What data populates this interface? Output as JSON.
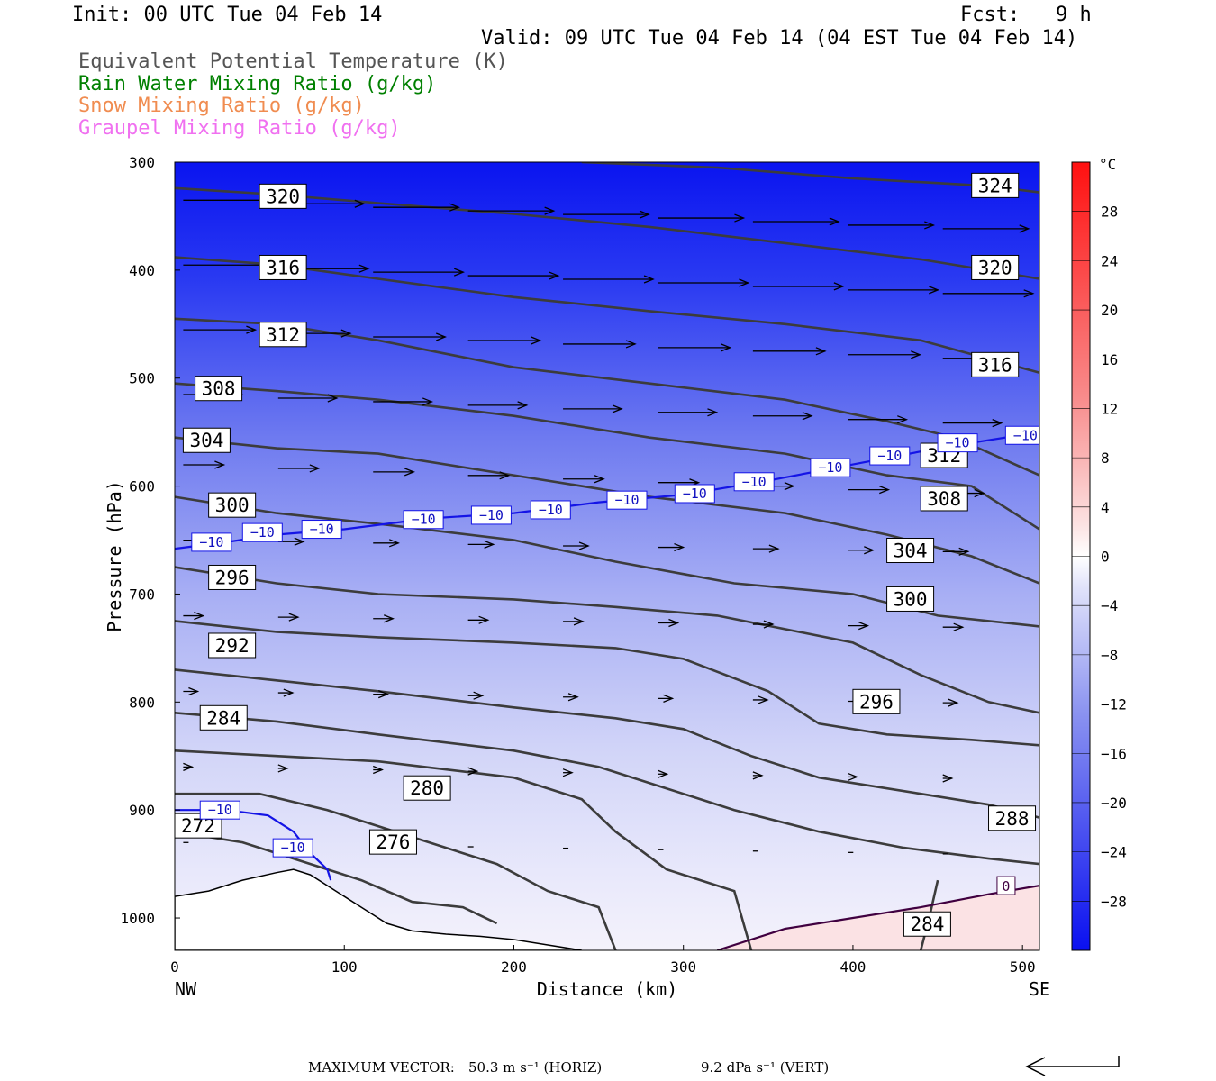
{
  "header": {
    "init": "Init: 00 UTC Tue 04 Feb 14",
    "fcst": "Fcst:   9 h",
    "valid": "Valid: 09 UTC Tue 04 Feb 14 (04 EST Tue 04 Feb 14)",
    "legend": [
      {
        "text": "Equivalent Potential Temperature (K)",
        "color": "#555555"
      },
      {
        "text": "Rain Water Mixing Ratio (g/kg)",
        "color": "#008000"
      },
      {
        "text": "Snow Mixing Ratio (g/kg)",
        "color": "#f08c50"
      },
      {
        "text": "Graupel Mixing Ratio (g/kg)",
        "color": "#f070f0"
      }
    ]
  },
  "chart_data": {
    "type": "cross-section",
    "xlabel": "Distance (km)",
    "ylabel": "Pressure (hPa)",
    "x_end_labels": {
      "left": "NW",
      "right": "SE"
    },
    "xlim": [
      0,
      510
    ],
    "ylim": [
      1030,
      300
    ],
    "x_ticks": [
      "0",
      "100",
      "200",
      "300",
      "400",
      "500"
    ],
    "y_ticks": [
      "300",
      "400",
      "500",
      "600",
      "700",
      "800",
      "900",
      "1000"
    ],
    "colorbar": {
      "unit": "°C",
      "labels": [
        "28",
        "24",
        "20",
        "16",
        "12",
        "8",
        "4",
        "0",
        "−4",
        "−8",
        "−12",
        "−16",
        "−20",
        "−24",
        "−28"
      ],
      "range": [
        -32,
        32
      ]
    },
    "theta_e_labels": [
      "320",
      "324",
      "316",
      "320",
      "312",
      "316",
      "308",
      "312",
      "304",
      "308",
      "300",
      "304",
      "296",
      "300",
      "292",
      "296",
      "284",
      "280",
      "288",
      "272",
      "276",
      "284"
    ],
    "temperature_labels": [
      "−10",
      "0"
    ],
    "theta_e_contours": [
      {
        "level": 324,
        "pts": [
          [
            240,
            300
          ],
          [
            320,
            305
          ],
          [
            400,
            315
          ],
          [
            480,
            322
          ],
          [
            510,
            328
          ]
        ]
      },
      {
        "level": 320,
        "pts": [
          [
            0,
            324
          ],
          [
            60,
            330
          ],
          [
            120,
            338
          ],
          [
            200,
            348
          ],
          [
            280,
            360
          ],
          [
            360,
            375
          ],
          [
            440,
            390
          ],
          [
            510,
            408
          ]
        ]
      },
      {
        "level": 316,
        "pts": [
          [
            0,
            388
          ],
          [
            60,
            395
          ],
          [
            120,
            408
          ],
          [
            200,
            425
          ],
          [
            280,
            438
          ],
          [
            360,
            450
          ],
          [
            440,
            465
          ],
          [
            510,
            495
          ]
        ]
      },
      {
        "level": 312,
        "pts": [
          [
            0,
            445
          ],
          [
            60,
            450
          ],
          [
            120,
            465
          ],
          [
            200,
            490
          ],
          [
            280,
            505
          ],
          [
            360,
            520
          ],
          [
            420,
            540
          ],
          [
            460,
            555
          ],
          [
            510,
            590
          ]
        ]
      },
      {
        "level": 308,
        "pts": [
          [
            0,
            505
          ],
          [
            60,
            512
          ],
          [
            120,
            520
          ],
          [
            200,
            535
          ],
          [
            280,
            555
          ],
          [
            360,
            570
          ],
          [
            420,
            590
          ],
          [
            470,
            600
          ],
          [
            510,
            640
          ]
        ]
      },
      {
        "level": 304,
        "pts": [
          [
            0,
            555
          ],
          [
            60,
            565
          ],
          [
            120,
            570
          ],
          [
            200,
            590
          ],
          [
            280,
            610
          ],
          [
            360,
            625
          ],
          [
            420,
            645
          ],
          [
            470,
            665
          ],
          [
            510,
            690
          ]
        ]
      },
      {
        "level": 300,
        "pts": [
          [
            0,
            610
          ],
          [
            60,
            625
          ],
          [
            120,
            635
          ],
          [
            200,
            650
          ],
          [
            260,
            670
          ],
          [
            330,
            690
          ],
          [
            400,
            700
          ],
          [
            450,
            720
          ],
          [
            510,
            730
          ]
        ]
      },
      {
        "level": 296,
        "pts": [
          [
            0,
            675
          ],
          [
            60,
            690
          ],
          [
            120,
            700
          ],
          [
            200,
            705
          ],
          [
            260,
            712
          ],
          [
            320,
            720
          ],
          [
            400,
            745
          ],
          [
            440,
            775
          ],
          [
            480,
            800
          ],
          [
            510,
            810
          ]
        ]
      },
      {
        "level": 292,
        "pts": [
          [
            0,
            725
          ],
          [
            60,
            735
          ],
          [
            120,
            740
          ],
          [
            200,
            745
          ],
          [
            260,
            750
          ],
          [
            300,
            760
          ],
          [
            350,
            790
          ],
          [
            380,
            820
          ],
          [
            420,
            830
          ],
          [
            470,
            835
          ],
          [
            510,
            840
          ]
        ]
      },
      {
        "level": 288,
        "pts": [
          [
            0,
            770
          ],
          [
            60,
            780
          ],
          [
            120,
            790
          ],
          [
            200,
            805
          ],
          [
            260,
            815
          ],
          [
            300,
            825
          ],
          [
            340,
            850
          ],
          [
            380,
            870
          ],
          [
            440,
            885
          ],
          [
            480,
            895
          ],
          [
            510,
            907
          ]
        ]
      },
      {
        "level": 284,
        "pts": [
          [
            0,
            810
          ],
          [
            60,
            818
          ],
          [
            120,
            830
          ],
          [
            200,
            845
          ],
          [
            250,
            860
          ],
          [
            290,
            880
          ],
          [
            330,
            900
          ],
          [
            380,
            920
          ],
          [
            430,
            935
          ],
          [
            480,
            945
          ],
          [
            510,
            950
          ]
        ]
      },
      {
        "level": 280,
        "pts": [
          [
            0,
            845
          ],
          [
            60,
            850
          ],
          [
            120,
            855
          ],
          [
            200,
            870
          ],
          [
            240,
            890
          ],
          [
            260,
            920
          ],
          [
            290,
            955
          ],
          [
            330,
            975
          ],
          [
            340,
            1030
          ]
        ]
      },
      {
        "level": 284,
        "pts": [
          [
            440,
            1030
          ],
          [
            445,
            1000
          ],
          [
            450,
            965
          ]
        ]
      },
      {
        "level": 276,
        "pts": [
          [
            0,
            885
          ],
          [
            50,
            885
          ],
          [
            90,
            900
          ],
          [
            140,
            925
          ],
          [
            190,
            950
          ],
          [
            220,
            975
          ],
          [
            250,
            990
          ],
          [
            260,
            1030
          ]
        ]
      },
      {
        "level": 272,
        "pts": [
          [
            0,
            920
          ],
          [
            40,
            930
          ],
          [
            80,
            950
          ],
          [
            110,
            965
          ],
          [
            140,
            985
          ],
          [
            170,
            990
          ],
          [
            190,
            1005
          ]
        ]
      }
    ],
    "temp_minus10": {
      "level": -10,
      "pts": [
        [
          0,
          658
        ],
        [
          30,
          652
        ],
        [
          60,
          645
        ],
        [
          100,
          640
        ],
        [
          150,
          630
        ],
        [
          200,
          625
        ],
        [
          250,
          615
        ],
        [
          300,
          608
        ],
        [
          350,
          595
        ],
        [
          400,
          580
        ],
        [
          450,
          565
        ],
        [
          510,
          550
        ]
      ]
    },
    "temp_minus10_low": {
      "level": -10,
      "pts": [
        [
          0,
          900
        ],
        [
          30,
          900
        ],
        [
          55,
          905
        ],
        [
          70,
          920
        ],
        [
          80,
          940
        ],
        [
          90,
          955
        ],
        [
          92,
          965
        ]
      ]
    },
    "temp_zero": {
      "level": 0,
      "pts": [
        [
          320,
          1030
        ],
        [
          360,
          1010
        ],
        [
          400,
          1000
        ],
        [
          440,
          990
        ],
        [
          480,
          978
        ],
        [
          510,
          970
        ]
      ]
    },
    "terrain_pts": [
      [
        0,
        980
      ],
      [
        20,
        975
      ],
      [
        40,
        965
      ],
      [
        60,
        958
      ],
      [
        70,
        955
      ],
      [
        80,
        960
      ],
      [
        95,
        975
      ],
      [
        110,
        990
      ],
      [
        125,
        1005
      ],
      [
        140,
        1012
      ],
      [
        160,
        1015
      ],
      [
        180,
        1017
      ],
      [
        200,
        1020
      ],
      [
        220,
        1025
      ],
      [
        240,
        1030
      ]
    ],
    "max_vector": {
      "label": "MAXIMUM VECTOR:",
      "horiz": "50.3 m s⁻¹ (HORIZ)",
      "vert": "9.2 dPa s⁻¹ (VERT)"
    }
  }
}
